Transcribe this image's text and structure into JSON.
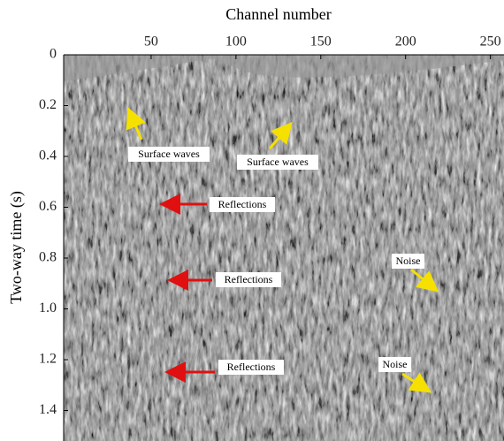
{
  "chart_data": {
    "type": "image",
    "xlabel": "Channel number",
    "ylabel": "Two-way time (s)",
    "xlim": [
      0,
      258
    ],
    "xticks": [
      50,
      100,
      150,
      200,
      250
    ],
    "ylim": [
      0,
      1.52
    ],
    "yticks": [
      0,
      {
        "value": 0.2,
        "label": "0.2"
      },
      {
        "value": 0.4,
        "label": "0.4"
      },
      {
        "value": 0.6,
        "label": "0.6"
      },
      {
        "value": 0.8,
        "label": "0.8"
      },
      {
        "value": 1.0,
        "label": "1.0"
      },
      {
        "value": 1.2,
        "label": "1.2"
      },
      {
        "value": 1.4,
        "label": "1.4"
      }
    ],
    "annotations": [
      "Surface waves",
      "Surface waves",
      "Reflections",
      "Reflections",
      "Reflections",
      "Noise",
      "Noise"
    ]
  }
}
